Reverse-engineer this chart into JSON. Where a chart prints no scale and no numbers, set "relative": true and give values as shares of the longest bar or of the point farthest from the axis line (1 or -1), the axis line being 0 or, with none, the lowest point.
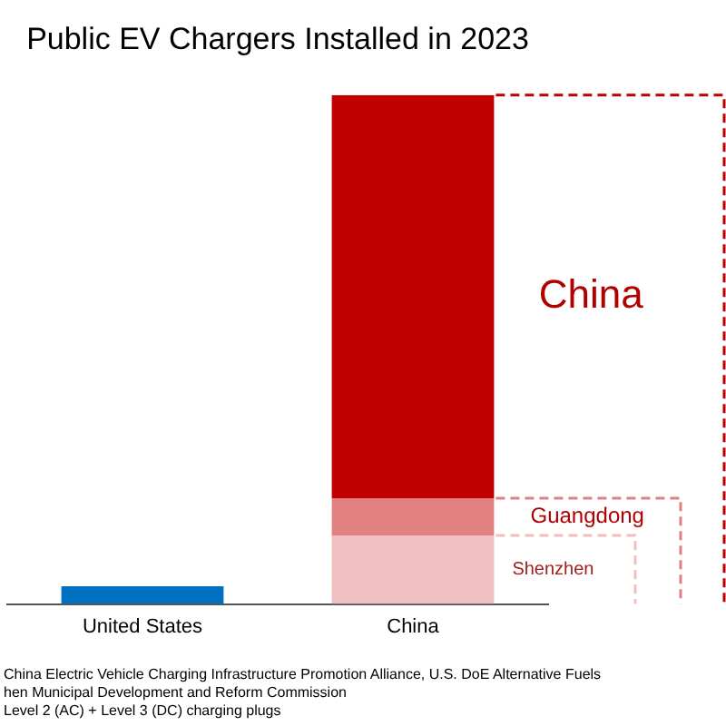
{
  "chart_data": {
    "type": "bar",
    "title": "Public EV Chargers Installed in 2023",
    "relative": true,
    "stacked": true,
    "legend": false,
    "categories": [
      "United States",
      "China"
    ],
    "series": [
      {
        "colors": [
          "#0070c0",
          "#f0c0c0"
        ],
        "values": [
          0.035,
          0.135
        ]
      },
      {
        "color": "#e08080",
        "values": [
          null,
          0.073
        ]
      },
      {
        "color": "#c00000",
        "values": [
          null,
          0.792
        ]
      }
    ],
    "ref_lines": [
      {
        "axis": "y",
        "value": 0.135,
        "label": "Shenzhen",
        "color": "#f0c0c0",
        "line_style": "dashed"
      },
      {
        "axis": "y",
        "value": 0.208,
        "label": "Guangdong",
        "color": "#e08080",
        "line_style": "dashed"
      },
      {
        "axis": "y",
        "value": 1,
        "label": "China",
        "color": "#c00000",
        "line_style": "dashed"
      }
    ],
    "annotations": [
      "China Electric Vehicle Charging Infrastructure Promotion Alliance, U.S. DoE Alternative Fuels",
      "hen Municipal Development and Reform Commission",
      "Level 2 (AC) + Level 3 (DC) charging plugs"
    ]
  }
}
